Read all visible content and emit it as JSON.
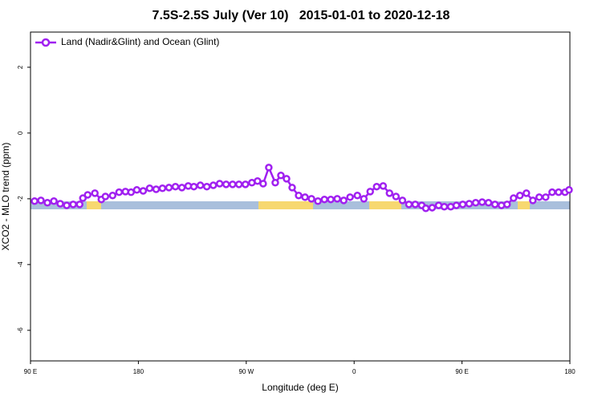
{
  "chart_data": {
    "type": "line",
    "title": "7.5S-2.5S July (Ver 10)   2015-01-01 to 2020-12-18",
    "x_label": "Longitude (deg E)",
    "y_label": "XCO2 - MLO trend (ppm)",
    "xlim": [
      90,
      540
    ],
    "ylim": [
      -6.93,
      3.07
    ],
    "xticks": [
      {
        "value": 90,
        "label": "90 E"
      },
      180,
      {
        "value": 270,
        "label": "90 W"
      },
      {
        "value": 360,
        "label": "0"
      },
      {
        "value": 450,
        "label": "90 E"
      },
      {
        "value": 540,
        "label": "180"
      }
    ],
    "yticks": [
      -6,
      -4,
      -2,
      0,
      2
    ],
    "legend": "top-left",
    "series": [
      {
        "name": "Land (Nadir&Glint) and Ocean (Glint)",
        "color": "#a020f0",
        "x": [
          93.4,
          98.7,
          104.1,
          109.5,
          114.8,
          120.2,
          125.6,
          131.0,
          133.7,
          137.7,
          143.7,
          149.1,
          152.5,
          158.5,
          163.9,
          169.2,
          173.9,
          178.7,
          184.0,
          189.4,
          194.8,
          200.1,
          205.5,
          210.9,
          216.3,
          221.6,
          226.3,
          231.7,
          237.1,
          242.5,
          247.8,
          253.2,
          258.6,
          263.9,
          269.3,
          274.7,
          279.4,
          284.1,
          288.8,
          294.2,
          298.9,
          303.6,
          308.3,
          313.7,
          319.0,
          324.4,
          329.8,
          335.2,
          340.5,
          345.9,
          351.3,
          356.6,
          362.7,
          368.1,
          373.4,
          378.8,
          384.2,
          389.5,
          394.9,
          400.3,
          405.7,
          411.0,
          416.4,
          419.8,
          425.1,
          430.5,
          435.2,
          440.6,
          445.3,
          450.6,
          456.0,
          461.4,
          466.8,
          472.1,
          477.5,
          482.9,
          487.6,
          493.0,
          498.3,
          503.7,
          509.1,
          514.4,
          519.8,
          525.2,
          530.6,
          535.9,
          539.3
        ],
        "values": [
          -2.07,
          -2.05,
          -2.12,
          -2.07,
          -2.15,
          -2.2,
          -2.17,
          -2.17,
          -1.98,
          -1.88,
          -1.83,
          -2.02,
          -1.93,
          -1.9,
          -1.8,
          -1.78,
          -1.8,
          -1.73,
          -1.76,
          -1.68,
          -1.71,
          -1.68,
          -1.66,
          -1.63,
          -1.66,
          -1.61,
          -1.63,
          -1.59,
          -1.63,
          -1.59,
          -1.54,
          -1.56,
          -1.56,
          -1.56,
          -1.56,
          -1.51,
          -1.46,
          -1.54,
          -1.05,
          -1.51,
          -1.29,
          -1.39,
          -1.66,
          -1.9,
          -1.95,
          -2.0,
          -2.07,
          -2.02,
          -2.02,
          -2.0,
          -2.05,
          -1.95,
          -1.9,
          -2.0,
          -1.78,
          -1.63,
          -1.61,
          -1.83,
          -1.93,
          -2.05,
          -2.17,
          -2.17,
          -2.2,
          -2.29,
          -2.27,
          -2.2,
          -2.24,
          -2.24,
          -2.2,
          -2.17,
          -2.15,
          -2.12,
          -2.1,
          -2.12,
          -2.17,
          -2.2,
          -2.17,
          -1.98,
          -1.9,
          -1.83,
          -2.05,
          -1.95,
          -1.95,
          -1.8,
          -1.8,
          -1.8,
          -1.73
        ]
      }
    ]
  }
}
